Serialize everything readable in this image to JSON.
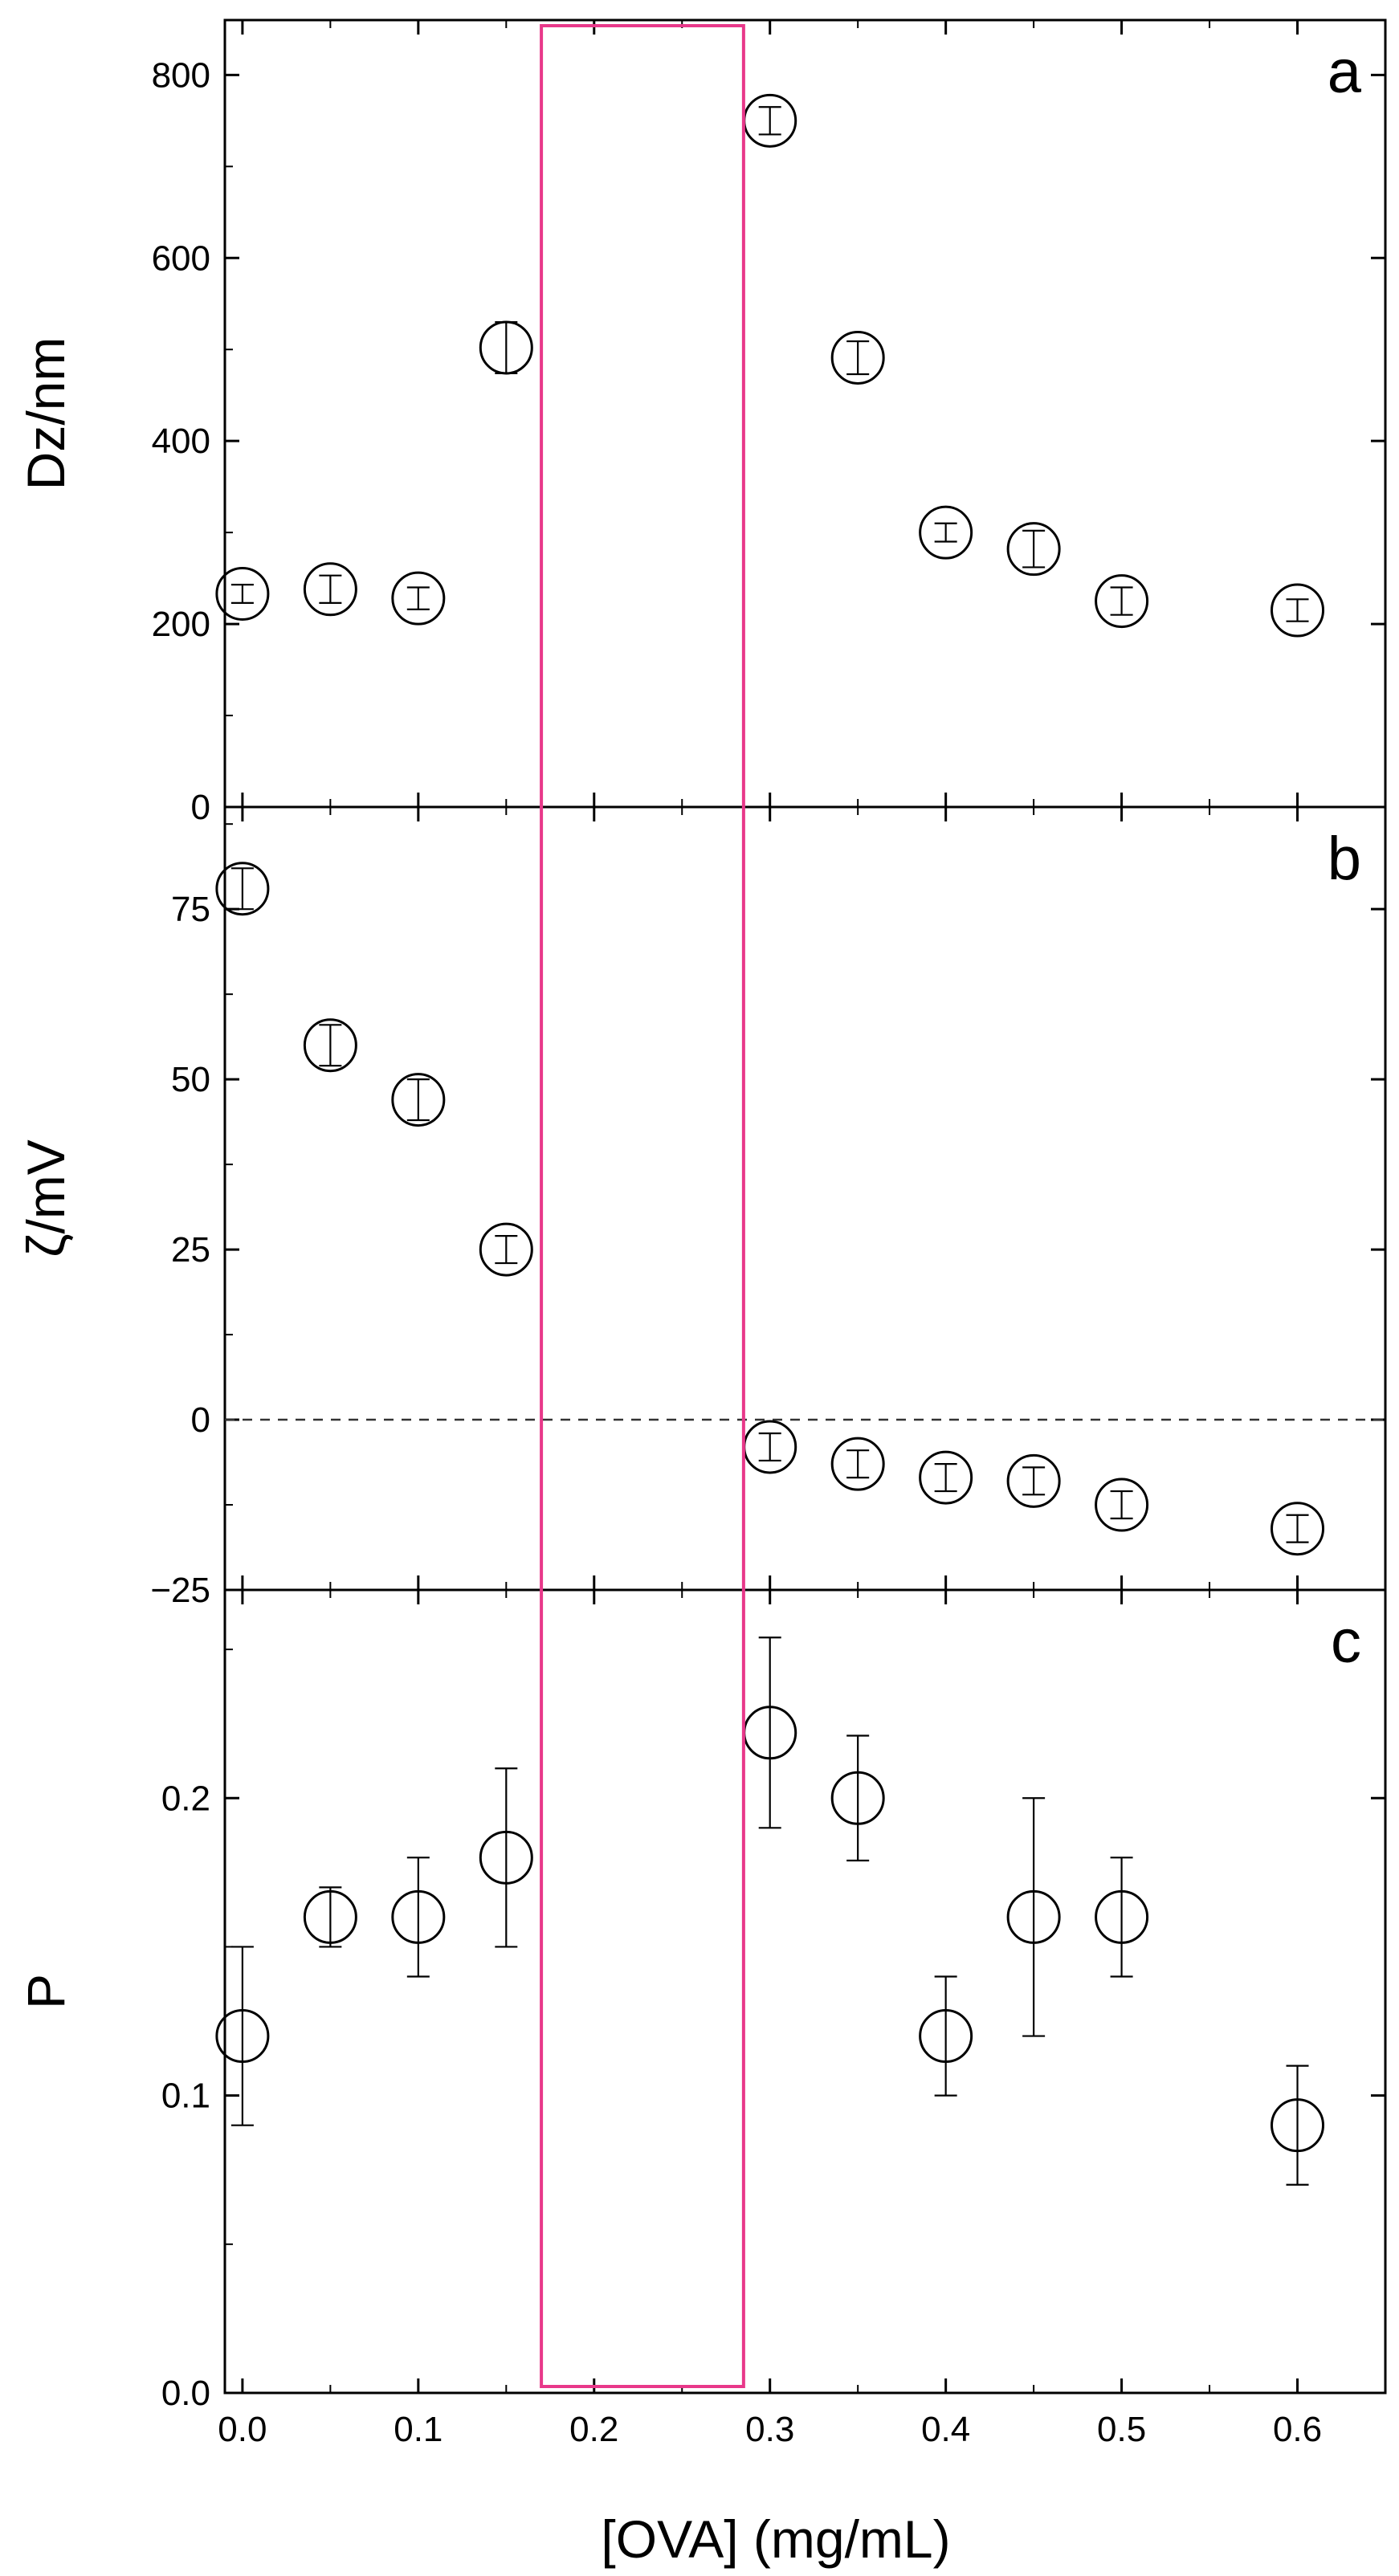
{
  "figure": {
    "xlabel": "[OVA] (mg/mL)",
    "highlight_box_color": "#e8388a",
    "highlight_box_x_range": [
      0.17,
      0.285
    ]
  },
  "chart_data": [
    {
      "type": "scatter",
      "panel_label": "a",
      "ylabel": "Dz/nm",
      "xlim": [
        -0.01,
        0.65
      ],
      "ylim": [
        0,
        860
      ],
      "yticks": [
        0,
        200,
        400,
        600,
        800
      ],
      "ytick_labels": [
        "0",
        "200",
        "400",
        "600",
        "800"
      ],
      "points": [
        {
          "x": 0.0,
          "y": 233,
          "err": 10
        },
        {
          "x": 0.05,
          "y": 238,
          "err": 15
        },
        {
          "x": 0.1,
          "y": 228,
          "err": 12
        },
        {
          "x": 0.15,
          "y": 502,
          "err": 28
        },
        {
          "x": 0.3,
          "y": 750,
          "err": 15
        },
        {
          "x": 0.35,
          "y": 491,
          "err": 18
        },
        {
          "x": 0.4,
          "y": 300,
          "err": 10
        },
        {
          "x": 0.45,
          "y": 282,
          "err": 20
        },
        {
          "x": 0.5,
          "y": 225,
          "err": 15
        },
        {
          "x": 0.6,
          "y": 215,
          "err": 12
        }
      ]
    },
    {
      "type": "scatter",
      "panel_label": "b",
      "ylabel": "ζ/mV",
      "xlim": [
        -0.01,
        0.65
      ],
      "ylim": [
        -25,
        90
      ],
      "yticks": [
        -25,
        0,
        25,
        50,
        75
      ],
      "ytick_labels": [
        "−25",
        "0",
        "25",
        "50",
        "75"
      ],
      "zero_line": true,
      "points": [
        {
          "x": 0.0,
          "y": 78,
          "err": 3
        },
        {
          "x": 0.05,
          "y": 55,
          "err": 3
        },
        {
          "x": 0.1,
          "y": 47,
          "err": 3
        },
        {
          "x": 0.15,
          "y": 25,
          "err": 2
        },
        {
          "x": 0.3,
          "y": -4,
          "err": 2
        },
        {
          "x": 0.35,
          "y": -6.5,
          "err": 2
        },
        {
          "x": 0.4,
          "y": -8.5,
          "err": 2
        },
        {
          "x": 0.45,
          "y": -9,
          "err": 2
        },
        {
          "x": 0.5,
          "y": -12.5,
          "err": 2
        },
        {
          "x": 0.6,
          "y": -16,
          "err": 2
        }
      ]
    },
    {
      "type": "scatter",
      "panel_label": "c",
      "ylabel": "P",
      "xlabel": "[OVA] (mg/mL)",
      "xlim": [
        -0.01,
        0.65
      ],
      "ylim": [
        0,
        0.27
      ],
      "yticks": [
        0,
        0.1,
        0.2
      ],
      "ytick_labels": [
        "0.0",
        "0.1",
        "0.2"
      ],
      "xticks": [
        0,
        0.1,
        0.2,
        0.3,
        0.4,
        0.5,
        0.6
      ],
      "xtick_labels": [
        "0.0",
        "0.1",
        "0.2",
        "0.3",
        "0.4",
        "0.5",
        "0.6"
      ],
      "points": [
        {
          "x": 0.0,
          "y": 0.12,
          "err": 0.03
        },
        {
          "x": 0.05,
          "y": 0.16,
          "err": 0.01
        },
        {
          "x": 0.1,
          "y": 0.16,
          "err": 0.02
        },
        {
          "x": 0.15,
          "y": 0.18,
          "err": 0.03
        },
        {
          "x": 0.3,
          "y": 0.222,
          "err": 0.032
        },
        {
          "x": 0.35,
          "y": 0.2,
          "err": 0.021
        },
        {
          "x": 0.4,
          "y": 0.12,
          "err": 0.02
        },
        {
          "x": 0.45,
          "y": 0.16,
          "err": 0.04
        },
        {
          "x": 0.5,
          "y": 0.16,
          "err": 0.02
        },
        {
          "x": 0.6,
          "y": 0.09,
          "err": 0.02
        }
      ]
    }
  ]
}
